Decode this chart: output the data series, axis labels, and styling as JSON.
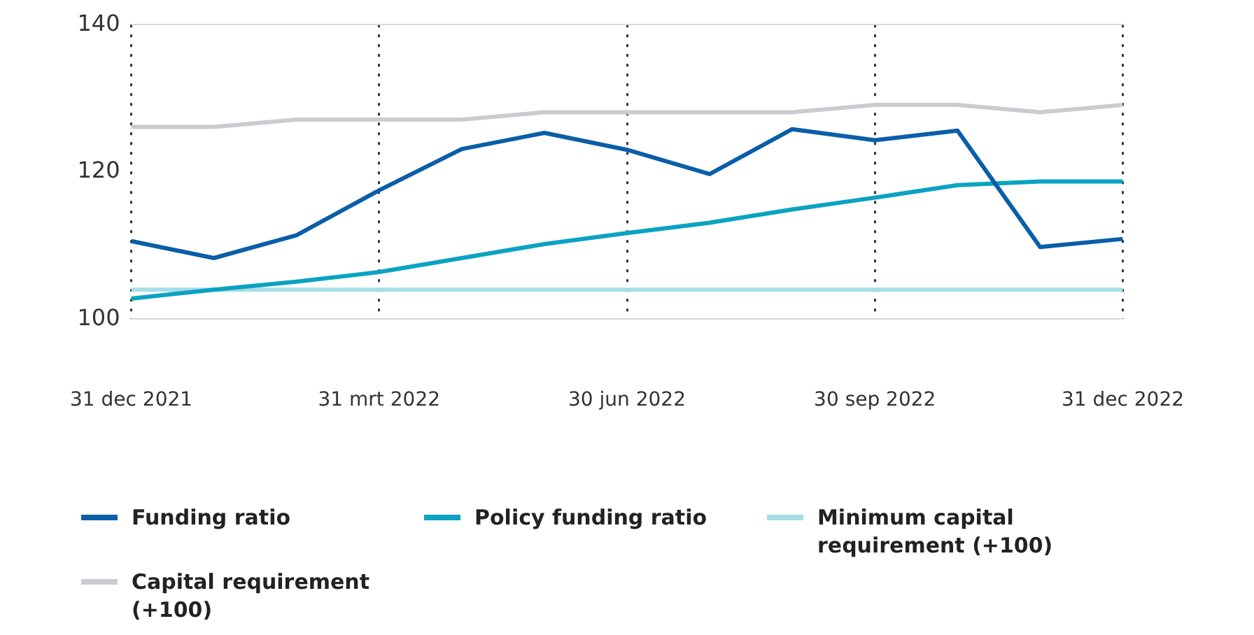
{
  "chart_data": {
    "type": "line",
    "categories": [
      "31 dec 2021",
      null,
      null,
      "31 mrt 2022",
      null,
      null,
      "30 jun 2022",
      null,
      null,
      "30 sep 2022",
      null,
      null,
      "31 dec 2022"
    ],
    "series": [
      {
        "name": "Funding ratio",
        "color": "#0a5ea8",
        "values": [
          110.6,
          108.3,
          111.4,
          117.5,
          123.1,
          125.3,
          123.0,
          119.7,
          125.8,
          124.3,
          125.6,
          109.8,
          110.9
        ]
      },
      {
        "name": "Policy funding ratio",
        "color": "#0aa3c2",
        "values": [
          102.8,
          104.0,
          105.1,
          106.4,
          108.3,
          110.2,
          111.7,
          113.1,
          114.9,
          116.5,
          118.2,
          118.7,
          118.7
        ]
      },
      {
        "name": "Minimum capital requirement (+100)",
        "color": "#a6dde6",
        "values": [
          104.0,
          104.0,
          104.0,
          104.0,
          104.0,
          104.0,
          104.0,
          104.0,
          104.0,
          104.0,
          104.0,
          104.0,
          104.0
        ]
      },
      {
        "name": "Capital requirement (+100)",
        "color": "#c9cdd2",
        "values": [
          126.1,
          126.1,
          127.1,
          127.1,
          127.1,
          128.1,
          128.1,
          128.1,
          128.1,
          129.1,
          129.1,
          128.1,
          129.1
        ]
      }
    ],
    "ylim": [
      100,
      140
    ],
    "yticks": [
      100,
      120,
      140
    ],
    "grid": "x",
    "legend": "bottom",
    "marker": "none",
    "line_style": "solid"
  }
}
